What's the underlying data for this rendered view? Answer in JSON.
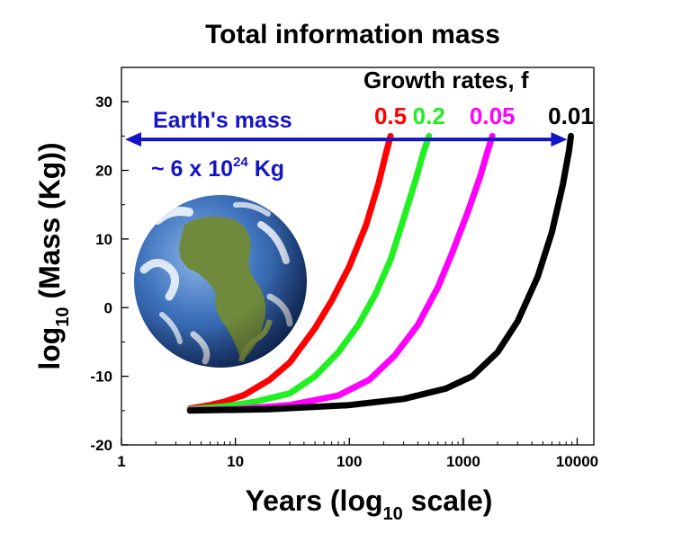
{
  "chart_data": {
    "type": "line",
    "title": "Total information mass",
    "xlabel": {
      "main": "Years (log",
      "sub": "10",
      "tail": " scale)"
    },
    "ylabel": {
      "main": "log",
      "sub": "10",
      "tail": " (Mass (Kg))"
    },
    "x_scale": "log",
    "xlim": [
      1,
      14000
    ],
    "ylim": [
      -20,
      35
    ],
    "x_ticks": [
      1,
      10,
      100,
      1000,
      10000
    ],
    "x_tick_labels": [
      "1",
      "10",
      "100",
      "1000",
      "10000"
    ],
    "y_ticks": [
      -20,
      -10,
      0,
      10,
      20,
      30
    ],
    "y_tick_labels": [
      "-20",
      "-10",
      "0",
      "10",
      "20",
      "30"
    ],
    "legend_title": "Growth rates, f",
    "series": [
      {
        "name": "0.5",
        "color": "#ff0000",
        "x": [
          4,
          6,
          8,
          12,
          20,
          30,
          50,
          70,
          100,
          140,
          180,
          210,
          230
        ],
        "y": [
          -14.7,
          -14.2,
          -13.7,
          -12.7,
          -10.5,
          -8.0,
          -3.0,
          1.0,
          6.0,
          12.0,
          18.0,
          22.5,
          25.0
        ]
      },
      {
        "name": "0.2",
        "color": "#20f020",
        "x": [
          4,
          8,
          15,
          30,
          50,
          80,
          120,
          170,
          230,
          300,
          380,
          450,
          500
        ],
        "y": [
          -14.8,
          -14.4,
          -13.7,
          -12.5,
          -10.0,
          -6.5,
          -2.5,
          2.0,
          7.0,
          13.0,
          18.5,
          22.8,
          25.0
        ]
      },
      {
        "name": "0.05",
        "color": "#ff00ff",
        "x": [
          4,
          10,
          30,
          80,
          150,
          250,
          400,
          600,
          800,
          1100,
          1400,
          1650,
          1800
        ],
        "y": [
          -14.9,
          -14.8,
          -14.2,
          -12.8,
          -10.5,
          -7.0,
          -2.5,
          3.0,
          8.0,
          14.0,
          19.0,
          23.0,
          25.0
        ]
      },
      {
        "name": "0.01",
        "color": "#000000",
        "x": [
          4,
          20,
          100,
          300,
          700,
          1200,
          2000,
          3000,
          4500,
          6000,
          7500,
          8500,
          8800
        ],
        "y": [
          -15.0,
          -14.8,
          -14.2,
          -13.3,
          -11.8,
          -10.0,
          -6.5,
          -2.0,
          4.5,
          11.0,
          18.0,
          23.0,
          25.0
        ]
      }
    ],
    "annotations": {
      "earth_label": "Earth's mass",
      "earth_value": {
        "prefix": "~ 6 x 10",
        "exponent": "24",
        "suffix": " Kg"
      },
      "earth_arrow": {
        "x_start": 1.0,
        "x_end": 8800,
        "y": 24.5
      }
    }
  },
  "colors": {
    "arrow": "#1414c8",
    "ocean": "#2f66b0",
    "land": "#6f8a3c"
  },
  "icons": {
    "earth": "earth-globe-icon"
  }
}
